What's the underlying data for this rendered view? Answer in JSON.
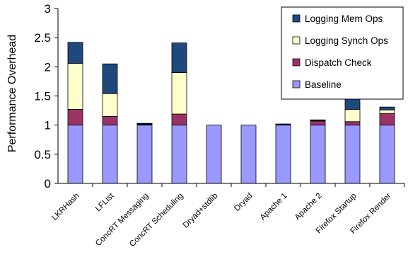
{
  "chart_data": {
    "type": "bar",
    "stacked": true,
    "ylabel": "Performance Overhead",
    "ylim": [
      0,
      3
    ],
    "yticks": [
      "0",
      "0.5",
      "1",
      "1.5",
      "2",
      "2.5",
      "3"
    ],
    "grid": false,
    "legend_position": "top-right",
    "categories": [
      "LKRHash",
      "LFList",
      "ConcRT Messaging",
      "ConcRT Scheduling",
      "Dryad+stdlib",
      "Dryad",
      "Apache 1",
      "Apache 2",
      "Firefox Startup",
      "Firefox Render"
    ],
    "series": [
      {
        "name": "Baseline",
        "color": "#9999ff",
        "values": [
          1.0,
          1.0,
          1.0,
          1.0,
          1.0,
          1.0,
          1.0,
          1.0,
          1.0,
          1.0
        ]
      },
      {
        "name": "Dispatch Check",
        "color": "#993366",
        "values": [
          0.27,
          0.15,
          0.01,
          0.19,
          0.0,
          0.0,
          0.01,
          0.07,
          0.06,
          0.2
        ]
      },
      {
        "name": "Logging Synch Ops",
        "color": "#ffffcc",
        "values": [
          0.79,
          0.39,
          0.01,
          0.71,
          0.0,
          0.0,
          0.01,
          0.01,
          0.21,
          0.06
        ]
      },
      {
        "name": "Logging Mem Ops",
        "color": "#1f497d",
        "values": [
          0.36,
          0.51,
          0.01,
          0.51,
          0.0,
          0.0,
          0.0,
          0.01,
          0.18,
          0.05
        ]
      }
    ],
    "legend_order": [
      "Logging Mem Ops",
      "Logging Synch Ops",
      "Dispatch Check",
      "Baseline"
    ]
  }
}
